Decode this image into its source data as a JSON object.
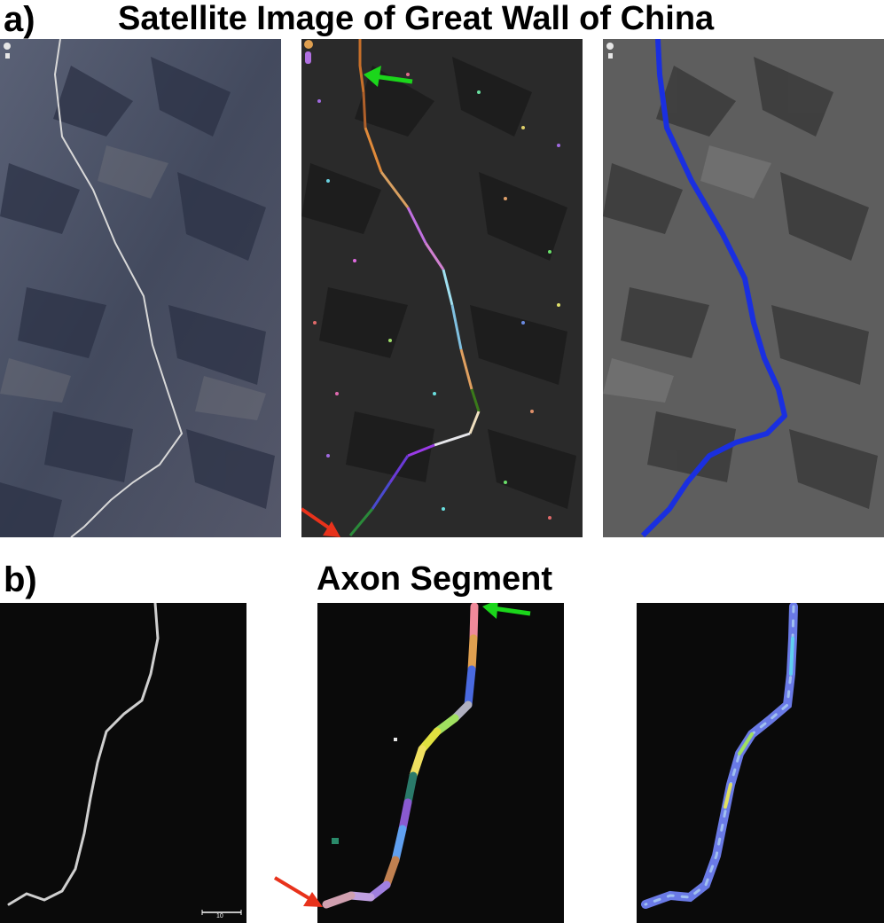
{
  "figure": {
    "section_a": {
      "label": "a)",
      "title": "Satellite Image of Great Wall of China"
    },
    "section_b": {
      "label": "b)",
      "title": "Axon Segment",
      "scalebar_label": "10"
    }
  },
  "colors": {
    "satellite_terrain": "#4a5066",
    "dark_terrain": "#262626",
    "gray_terrain": "#5a5a5a",
    "wall_trace": "#1a2fe0",
    "axon_background": "#0a0a0a",
    "arrow_green": "#1bd61b",
    "arrow_red": "#e8321b"
  }
}
